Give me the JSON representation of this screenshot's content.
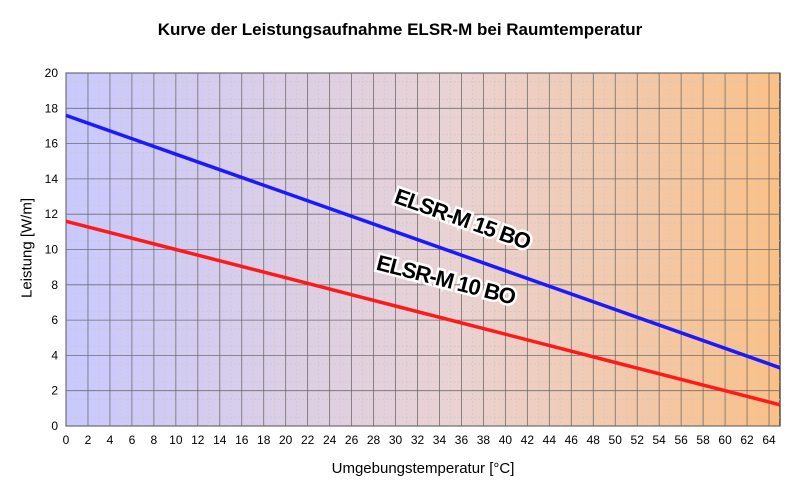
{
  "chart_data": {
    "type": "line",
    "title": "Kurve der Leistungsaufnahme ELSR-M bei Raumtemperatur",
    "xlabel": "Umgebungstemperatur  [°C]",
    "ylabel": "Leistung  [W/m]",
    "xlim": [
      0,
      65
    ],
    "ylim": [
      0,
      20
    ],
    "x_ticks": [
      0,
      2,
      4,
      6,
      8,
      10,
      12,
      14,
      16,
      18,
      20,
      22,
      24,
      26,
      28,
      30,
      32,
      34,
      36,
      38,
      40,
      42,
      44,
      46,
      48,
      50,
      52,
      54,
      56,
      58,
      60,
      62,
      64
    ],
    "y_ticks": [
      0,
      2,
      4,
      6,
      8,
      10,
      12,
      14,
      16,
      18,
      20
    ],
    "grid": true,
    "series": [
      {
        "name": "ELSR-M 15 BO",
        "color": "#1a1aff",
        "x": [
          0,
          10,
          20,
          30,
          40,
          50,
          60,
          65
        ],
        "y": [
          17.6,
          15.4,
          13.2,
          11.0,
          8.8,
          6.6,
          4.4,
          3.3
        ]
      },
      {
        "name": "ELSR-M 10 BO",
        "color": "#ff1a1a",
        "x": [
          0,
          10,
          20,
          30,
          40,
          50,
          60,
          65
        ],
        "y": [
          11.6,
          10.0,
          8.4,
          6.8,
          5.2,
          3.6,
          2.0,
          1.2
        ]
      }
    ]
  }
}
